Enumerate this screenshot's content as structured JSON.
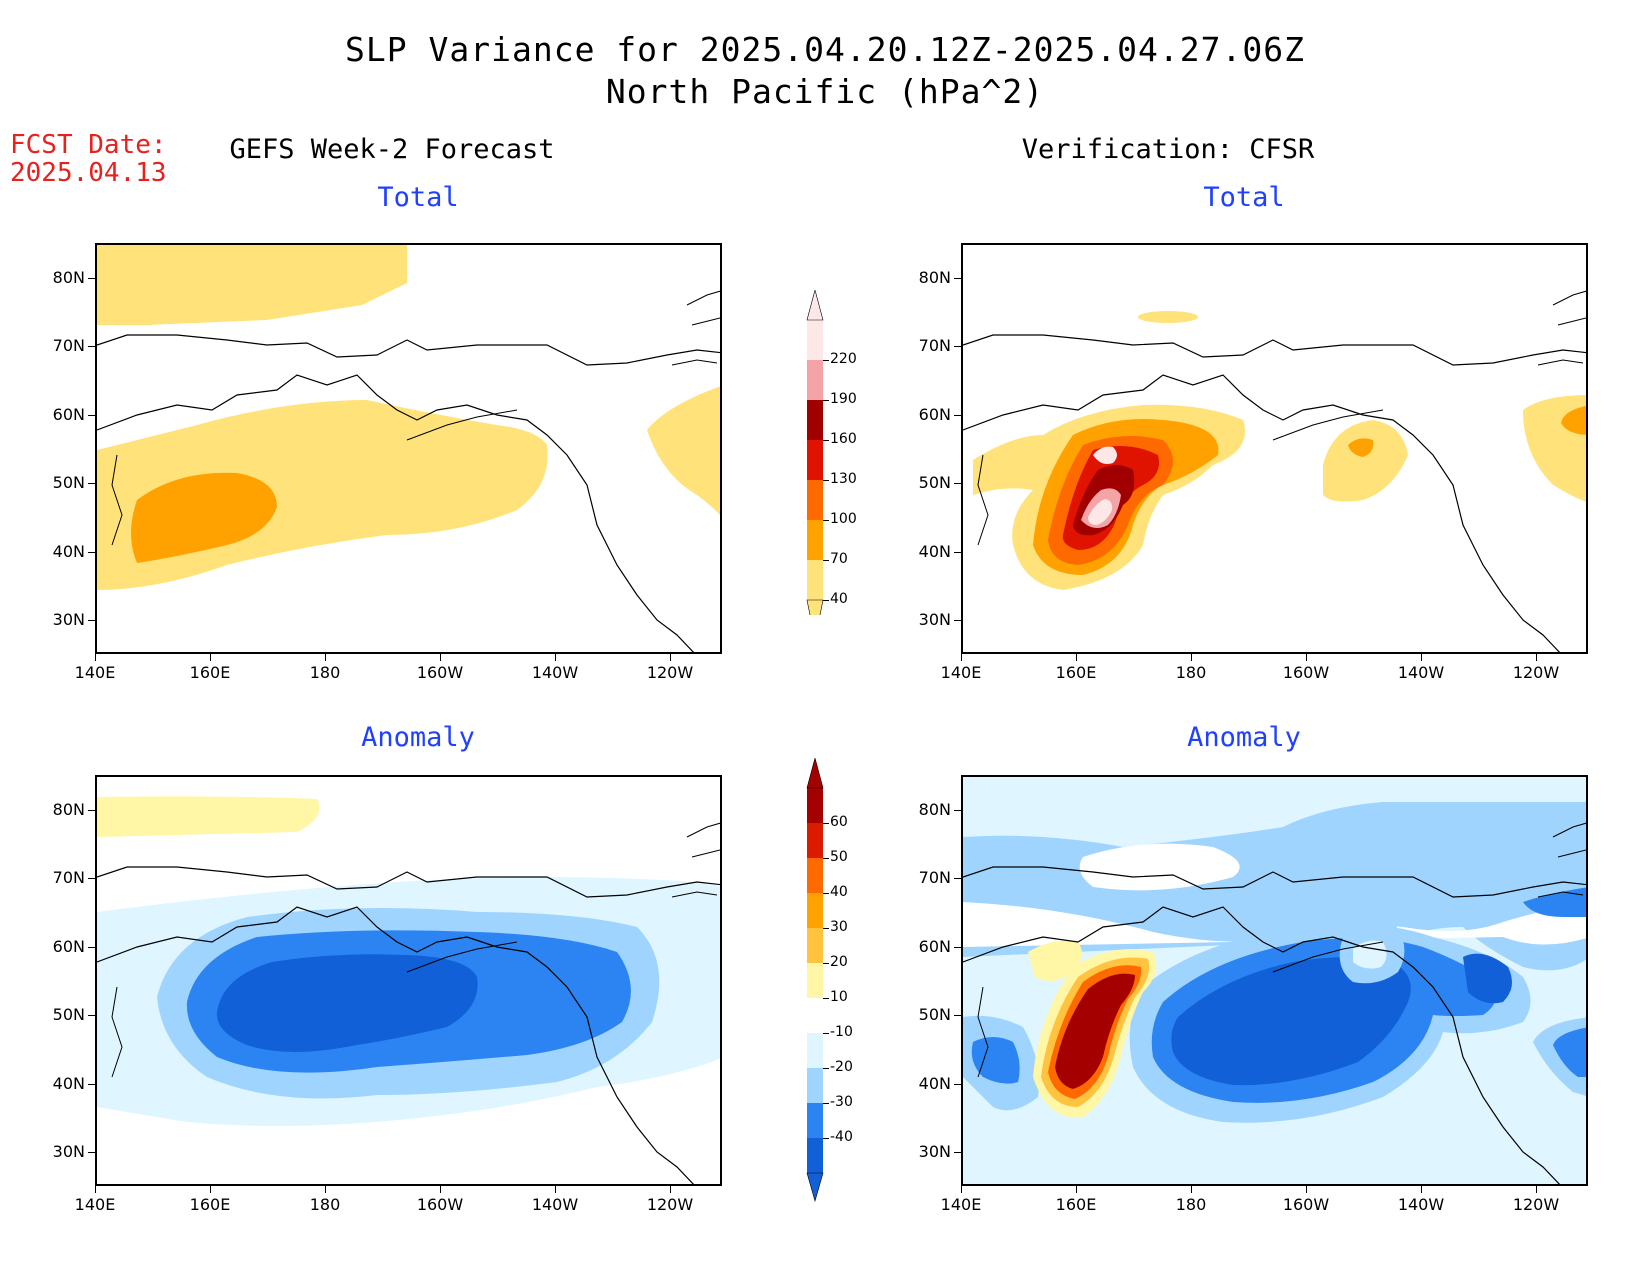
{
  "title_line1": "SLP Variance for 2025.04.20.12Z-2025.04.27.06Z",
  "title_line2": "North Pacific (hPa^2)",
  "fcst_label": "FCST Date:",
  "fcst_date": "2025.04.13",
  "left_heading": "GEFS Week-2 Forecast",
  "right_heading": "Verification: CFSR",
  "sub_total": "Total",
  "sub_anomaly": "Anomaly",
  "lat_labels": [
    "80N",
    "70N",
    "60N",
    "50N",
    "40N",
    "30N"
  ],
  "lon_labels": [
    "140E",
    "160E",
    "180",
    "160W",
    "140W",
    "120W"
  ],
  "total_colorbar": {
    "labels": [
      "220",
      "190",
      "160",
      "130",
      "100",
      "70",
      "40"
    ],
    "colors": [
      "#fde7e7",
      "#f4a3a6",
      "#a10000",
      "#e01200",
      "#ff6a00",
      "#ffa200",
      "#ffe37a"
    ]
  },
  "anomaly_colorbar": {
    "labels": [
      "60",
      "50",
      "40",
      "30",
      "20",
      "10",
      "-10",
      "-20",
      "-30",
      "-40"
    ],
    "colors": [
      "#a50000",
      "#dc1a00",
      "#ff6a00",
      "#ffa200",
      "#ffc340",
      "#fff6a6",
      "#ffffff",
      "#dff5ff",
      "#9fd4ff",
      "#2b84f2",
      "#1260d8"
    ]
  }
}
